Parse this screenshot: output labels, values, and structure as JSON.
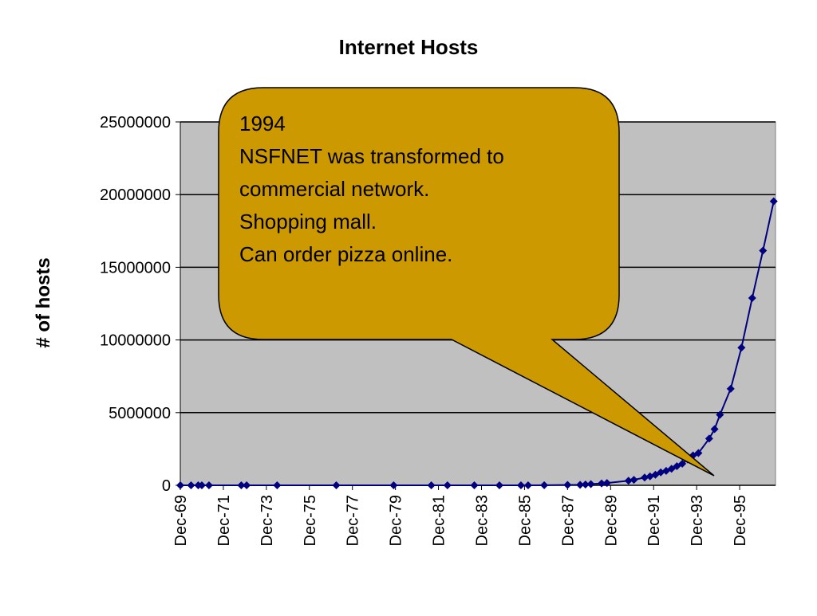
{
  "chart_data": {
    "type": "line",
    "title": "Internet Hosts",
    "y_label": "# of hosts",
    "x": [
      "1969-12",
      "1970-06",
      "1970-10",
      "1970-12",
      "1971-04",
      "1972-10",
      "1973-01",
      "1974-06",
      "1977-03",
      "1979-11",
      "1981-08",
      "1982-05",
      "1983-08",
      "1984-10",
      "1985-10",
      "1986-02",
      "1986-11",
      "1987-12",
      "1988-07",
      "1988-10",
      "1989-01",
      "1989-07",
      "1989-10",
      "1990-10",
      "1991-01",
      "1991-07",
      "1991-10",
      "1992-01",
      "1992-04",
      "1992-07",
      "1992-10",
      "1993-01",
      "1993-04",
      "1993-07",
      "1993-10",
      "1994-01",
      "1994-07",
      "1994-10",
      "1995-01",
      "1995-07",
      "1996-01",
      "1996-07",
      "1997-01",
      "1997-07"
    ],
    "series": [
      {
        "name": "hosts",
        "color": "#000080",
        "values": [
          4,
          9,
          11,
          13,
          23,
          31,
          35,
          62,
          111,
          188,
          213,
          235,
          562,
          1024,
          1961,
          2308,
          5089,
          28174,
          33000,
          56000,
          80000,
          130000,
          159000,
          313000,
          376000,
          535000,
          617000,
          727000,
          890000,
          992000,
          1136000,
          1313000,
          1486000,
          1776000,
          2056000,
          2217000,
          3212000,
          3864000,
          4852000,
          6642000,
          9472000,
          12881000,
          16146000,
          19540000
        ]
      }
    ],
    "xlim": [
      "1969-12",
      "1997-08"
    ],
    "xticks": [
      {
        "value": "1969-12",
        "label": "Dec-69"
      },
      {
        "value": "1971-12",
        "label": "Dec-71"
      },
      {
        "value": "1973-12",
        "label": "Dec-73"
      },
      {
        "value": "1975-12",
        "label": "Dec-75"
      },
      {
        "value": "1977-12",
        "label": "Dec-77"
      },
      {
        "value": "1979-12",
        "label": "Dec-79"
      },
      {
        "value": "1981-12",
        "label": "Dec-81"
      },
      {
        "value": "1983-12",
        "label": "Dec-83"
      },
      {
        "value": "1985-12",
        "label": "Dec-85"
      },
      {
        "value": "1987-12",
        "label": "Dec-87"
      },
      {
        "value": "1989-12",
        "label": "Dec-89"
      },
      {
        "value": "1991-12",
        "label": "Dec-91"
      },
      {
        "value": "1993-12",
        "label": "Dec-93"
      },
      {
        "value": "1995-12",
        "label": "Dec-95"
      }
    ],
    "ylim": [
      0,
      25000000
    ],
    "yticks": [
      0,
      5000000,
      10000000,
      15000000,
      20000000,
      25000000
    ],
    "grid": true,
    "plot_background": "#c0c0c0",
    "annotation": {
      "lines": [
        "1994",
        "NSFNET was transformed to",
        "commercial network.",
        "Shopping mall.",
        "Can order pizza online."
      ],
      "color": "#cc9900"
    }
  }
}
